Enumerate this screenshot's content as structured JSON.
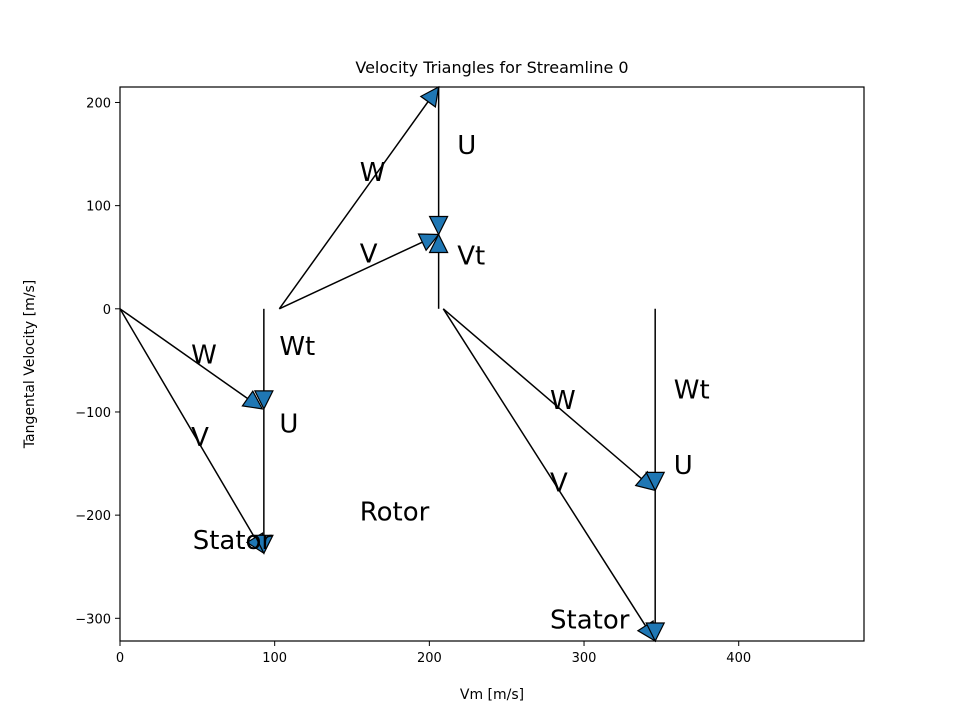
{
  "chart_data": {
    "type": "velocity-triangles",
    "title": "Velocity Triangles for Streamline 0",
    "xlabel": "Vm [m/s]",
    "ylabel": "Tangental Velocity [m/s]",
    "xlim": [
      0,
      481
    ],
    "ylim": [
      -322,
      215
    ],
    "xticks": [
      0,
      100,
      200,
      300,
      400
    ],
    "yticks": [
      -300,
      -200,
      -100,
      0,
      100,
      200
    ],
    "x_tick_labels": [
      "0",
      "100",
      "200",
      "300",
      "400"
    ],
    "y_tick_labels": [
      "−300",
      "−200",
      "−100",
      "0",
      "100",
      "200"
    ],
    "vectors": [
      {
        "name": "stator-in-W",
        "from": [
          0,
          0
        ],
        "to": [
          92,
          -97
        ]
      },
      {
        "name": "stator-in-V",
        "from": [
          0,
          0
        ],
        "to": [
          93,
          -237
        ]
      },
      {
        "name": "stator-in-Wt",
        "from": [
          93,
          0
        ],
        "to": [
          93,
          -97
        ]
      },
      {
        "name": "stator-in-U",
        "from": [
          93,
          -97
        ],
        "to": [
          93,
          -237
        ]
      },
      {
        "name": "rotor-W",
        "from": [
          103,
          0
        ],
        "to": [
          206,
          215
        ]
      },
      {
        "name": "rotor-V",
        "from": [
          103,
          0
        ],
        "to": [
          206,
          72
        ]
      },
      {
        "name": "rotor-U",
        "from": [
          206,
          215
        ],
        "to": [
          206,
          72
        ]
      },
      {
        "name": "rotor-Vt",
        "from": [
          206,
          0
        ],
        "to": [
          206,
          72
        ]
      },
      {
        "name": "stator-out-W",
        "from": [
          209,
          0
        ],
        "to": [
          346,
          -176
        ]
      },
      {
        "name": "stator-out-V",
        "from": [
          209,
          0
        ],
        "to": [
          346,
          -322
        ]
      },
      {
        "name": "stator-out-Wt",
        "from": [
          346,
          0
        ],
        "to": [
          346,
          -176
        ]
      },
      {
        "name": "stator-out-U",
        "from": [
          346,
          -176
        ],
        "to": [
          346,
          -322
        ]
      }
    ],
    "annotations": [
      {
        "text": "W",
        "x": 46,
        "y": -53
      },
      {
        "text": "V",
        "x": 46,
        "y": -133
      },
      {
        "text": "Wt",
        "x": 103,
        "y": -45
      },
      {
        "text": "U",
        "x": 103,
        "y": -120
      },
      {
        "text": "Stator",
        "x": 47,
        "y": -233
      },
      {
        "text": "W",
        "x": 155,
        "y": 124
      },
      {
        "text": "V",
        "x": 155,
        "y": 45
      },
      {
        "text": "U",
        "x": 218,
        "y": 150
      },
      {
        "text": "Vt",
        "x": 218,
        "y": 43
      },
      {
        "text": "Rotor",
        "x": 155,
        "y": -205
      },
      {
        "text": "W",
        "x": 278,
        "y": -97
      },
      {
        "text": "V",
        "x": 278,
        "y": -177
      },
      {
        "text": "Wt",
        "x": 358,
        "y": -87
      },
      {
        "text": "U",
        "x": 358,
        "y": -160
      },
      {
        "text": "Stator",
        "x": 278,
        "y": -310
      }
    ]
  }
}
